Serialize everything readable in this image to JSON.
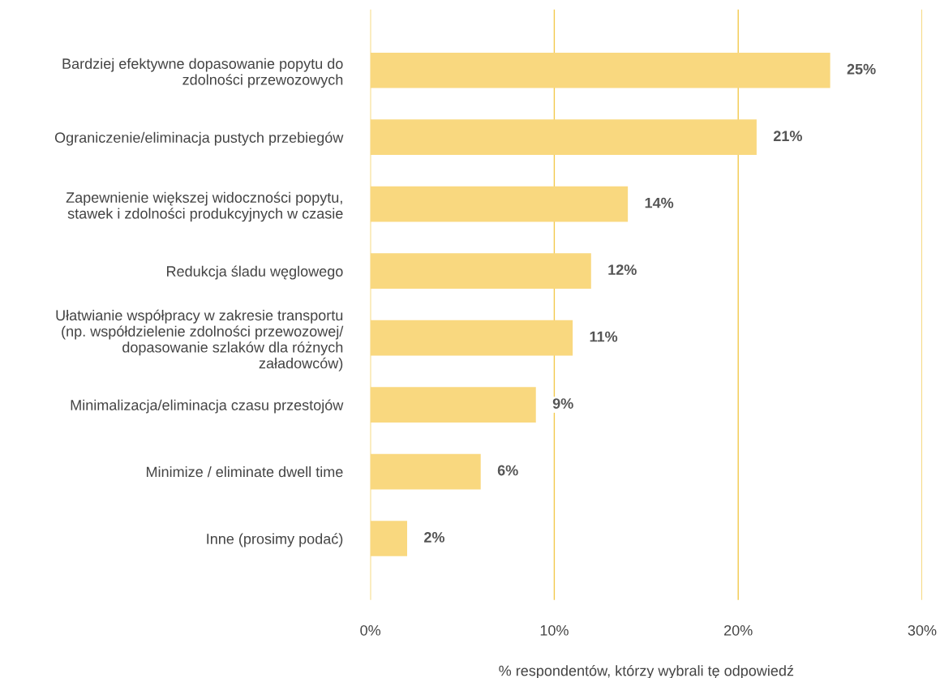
{
  "chart_data": {
    "type": "bar",
    "orientation": "horizontal",
    "categories": [
      "Bardziej efektywne dopasowanie popytu do\nzdolności przewozowych",
      "Ograniczenie/eliminacja pustych przebiegów",
      "Zapewnienie większej widoczności popytu,\nstawek i zdolności produkcyjnych w czasie",
      "Redukcja śladu węglowego",
      "Ułatwianie współpracy w zakresie transportu\n(np. współdzielenie zdolności przewozowej/\ndopasowanie szlaków dla różnych\nzaładowców)",
      "Minimalizacja/eliminacja czasu przestojów",
      "Minimize / eliminate dwell time",
      "Inne (prosimy podać)"
    ],
    "values": [
      25,
      21,
      14,
      12,
      11,
      9,
      6,
      2
    ],
    "value_labels": [
      "25%",
      "21%",
      "14%",
      "12%",
      "11%",
      "9%",
      "6%",
      "2%"
    ],
    "color": "#f9d87f",
    "xlim": [
      0,
      30
    ],
    "xticks": [
      {
        "value": 0,
        "label": "0%"
      },
      {
        "value": 10,
        "label": "10%"
      },
      {
        "value": 20,
        "label": "20%"
      },
      {
        "value": 30,
        "label": "30%"
      }
    ],
    "xlabel": "% respondentów, którzy wybrali tę odpowiedź",
    "grid": "x",
    "legend": false
  }
}
